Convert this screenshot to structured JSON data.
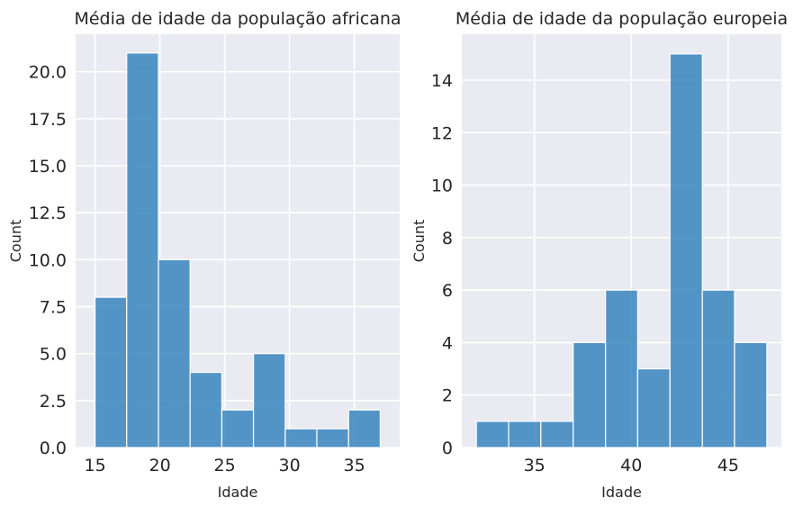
{
  "chart_data": [
    {
      "type": "bar",
      "title": "Média de idade da população africana",
      "xlabel": "Idade",
      "ylabel": "Count",
      "bin_edges": [
        15.0,
        17.44,
        19.89,
        22.33,
        24.78,
        27.22,
        29.67,
        32.11,
        34.56,
        37.0
      ],
      "values": [
        8,
        21,
        10,
        4,
        2,
        5,
        1,
        1,
        2
      ],
      "xlim": [
        13.5,
        38.5
      ],
      "ylim": [
        0,
        22
      ],
      "xticks": [
        15,
        20,
        25,
        30,
        35
      ],
      "xtick_labels": [
        "15",
        "20",
        "25",
        "30",
        "35"
      ],
      "yticks": [
        0,
        2.5,
        5,
        7.5,
        10,
        12.5,
        15,
        17.5,
        20
      ],
      "ytick_labels": [
        "0.0",
        "2.5",
        "5.0",
        "7.5",
        "10.0",
        "12.5",
        "15.0",
        "17.5",
        "20.0"
      ],
      "grid": true,
      "bar_color": "#3d87bf",
      "background": "#eaeaf2"
    },
    {
      "type": "bar",
      "title": "Média de idade da população europeia",
      "xlabel": "Idade",
      "ylabel": "Count",
      "bin_edges": [
        32.0,
        33.67,
        35.33,
        37.0,
        38.67,
        40.33,
        42.0,
        43.67,
        45.33,
        47.0
      ],
      "values": [
        1,
        1,
        1,
        4,
        6,
        3,
        15,
        6,
        4
      ],
      "xlim": [
        31.25,
        47.75
      ],
      "ylim": [
        0,
        15.75
      ],
      "xticks": [
        35,
        40,
        45
      ],
      "xtick_labels": [
        "35",
        "40",
        "45"
      ],
      "yticks": [
        0,
        2,
        4,
        6,
        8,
        10,
        12,
        14
      ],
      "ytick_labels": [
        "0",
        "2",
        "4",
        "6",
        "8",
        "10",
        "12",
        "14"
      ],
      "grid": true,
      "bar_color": "#3d87bf",
      "background": "#eaeaf2"
    }
  ]
}
